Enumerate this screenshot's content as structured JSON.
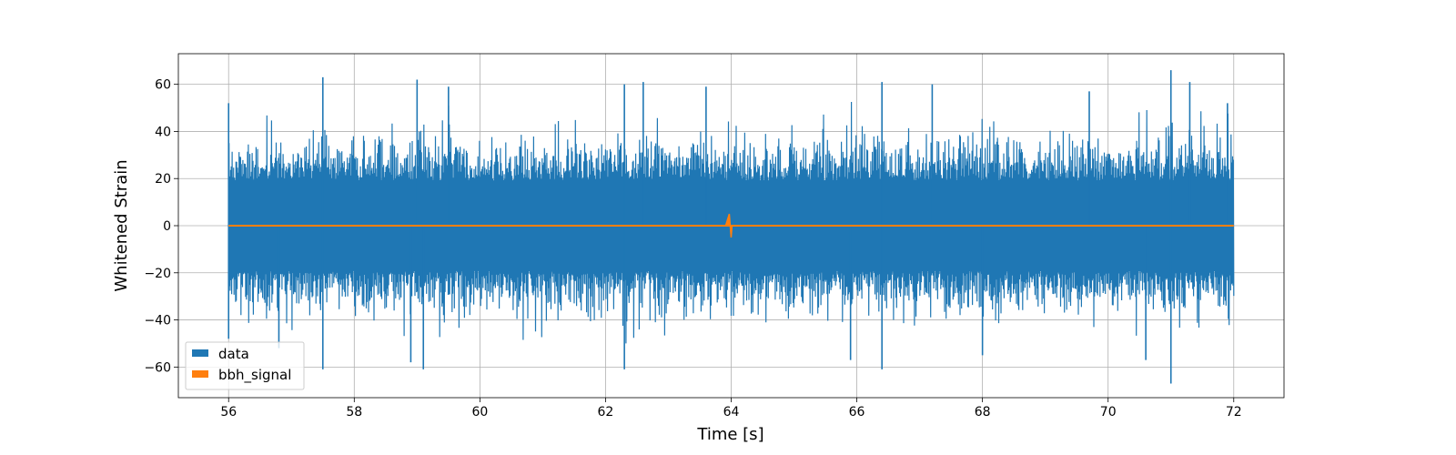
{
  "chart_data": {
    "type": "line",
    "title": "",
    "xlabel": "Time [s]",
    "ylabel": "Whitened Strain",
    "xlim": [
      55.2,
      72.8
    ],
    "ylim": [
      -73,
      73
    ],
    "x_range": [
      56,
      72
    ],
    "xticks": [
      56,
      58,
      60,
      62,
      64,
      66,
      68,
      70,
      72
    ],
    "yticks": [
      -60,
      -40,
      -20,
      0,
      20,
      40,
      60
    ],
    "grid": true,
    "legend_position": "lower-left",
    "series": [
      {
        "name": "data",
        "color": "#1f77b4",
        "description_values": {
          "typical_envelope": 35,
          "max": 66,
          "min": -67
        },
        "peaks": [
          {
            "x": 56.0,
            "y": 52
          },
          {
            "x": 56.0,
            "y": -48
          },
          {
            "x": 56.8,
            "y": -52
          },
          {
            "x": 57.5,
            "y": 63
          },
          {
            "x": 57.5,
            "y": -61
          },
          {
            "x": 58.9,
            "y": -58
          },
          {
            "x": 59.0,
            "y": 62
          },
          {
            "x": 59.1,
            "y": -61
          },
          {
            "x": 59.5,
            "y": 59
          },
          {
            "x": 62.3,
            "y": 60
          },
          {
            "x": 62.3,
            "y": -61
          },
          {
            "x": 62.6,
            "y": 61
          },
          {
            "x": 63.6,
            "y": 59
          },
          {
            "x": 65.9,
            "y": -57
          },
          {
            "x": 66.4,
            "y": 61
          },
          {
            "x": 66.4,
            "y": -61
          },
          {
            "x": 67.2,
            "y": 60
          },
          {
            "x": 68.0,
            "y": -55
          },
          {
            "x": 69.7,
            "y": 57
          },
          {
            "x": 70.6,
            "y": -57
          },
          {
            "x": 71.0,
            "y": 66
          },
          {
            "x": 71.0,
            "y": -67
          },
          {
            "x": 71.3,
            "y": 61
          },
          {
            "x": 71.9,
            "y": 52
          }
        ]
      },
      {
        "name": "bbh_signal",
        "color": "#ff7f0e",
        "merger_time": 63.97,
        "merger_amplitude": 2.5
      }
    ]
  }
}
